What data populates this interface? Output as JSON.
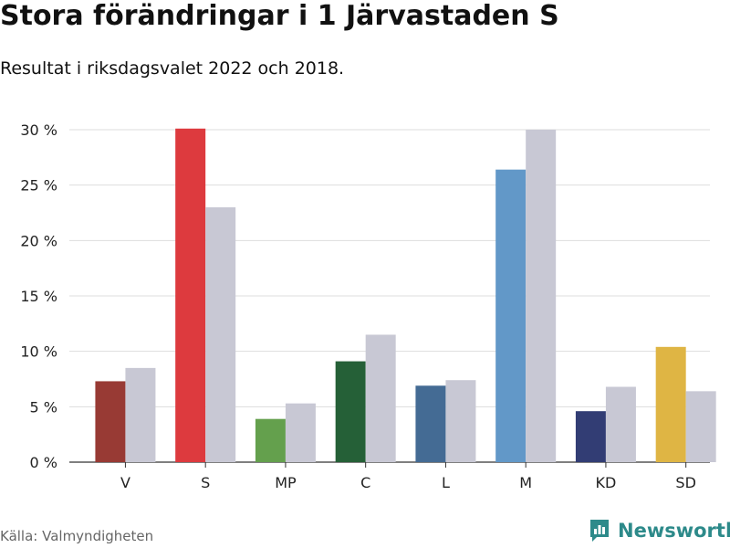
{
  "title": "Stora förändringar i 1 Järvastaden S",
  "subtitle": "Resultat i riksdagsvalet 2022 och 2018.",
  "source": "Källa: Valmyndigheten",
  "brand": {
    "name": "Newsworthy",
    "color": "#2d8a8a",
    "icon": "newsworthy-logo-icon"
  },
  "chart_data": {
    "type": "bar",
    "categories": [
      "V",
      "S",
      "MP",
      "C",
      "L",
      "M",
      "KD",
      "SD"
    ],
    "series": [
      {
        "colors": [
          "#983a34",
          "#dd3a3e",
          "#64a04d",
          "#256037",
          "#446b94",
          "#6298c8",
          "#323d74",
          "#dfb544"
        ],
        "values": [
          7.3,
          30.1,
          3.9,
          9.1,
          6.9,
          26.4,
          4.6,
          10.4
        ]
      },
      {
        "color": "#c8c8d4",
        "values": [
          8.5,
          23.0,
          5.3,
          11.5,
          7.4,
          30.0,
          6.8,
          6.4
        ]
      }
    ],
    "y_ticks": [
      0,
      5,
      10,
      15,
      20,
      25,
      30
    ],
    "y_tick_labels": [
      "0 %",
      "5 %",
      "10 %",
      "15 %",
      "20 %",
      "25 %",
      "30 %"
    ],
    "ylim": [
      0,
      30
    ],
    "grid": true,
    "xlabel": "",
    "ylabel": ""
  }
}
